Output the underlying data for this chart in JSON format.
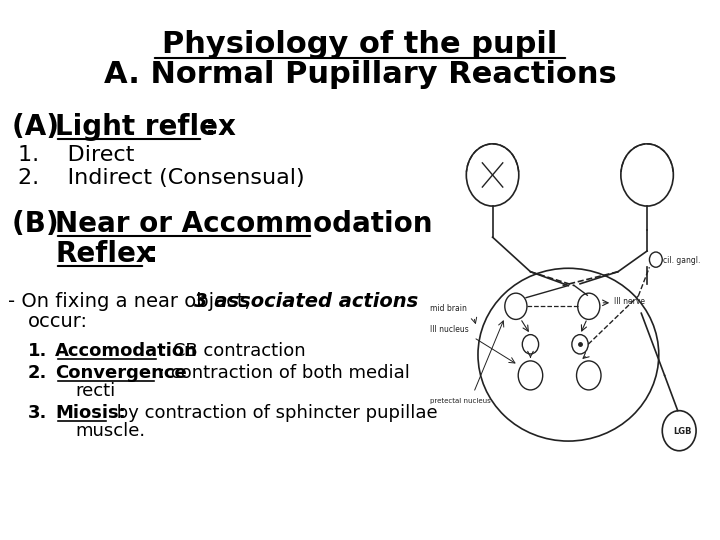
{
  "bg_color": "#ffffff",
  "title_line1": "Physiology of the pupil",
  "title_line2": "A. Normal Pupillary Reactions",
  "title_fontsize": 22,
  "title2_fontsize": 22,
  "section_a_label": "(A) ",
  "section_a_underline": "Light reflex",
  "section_a_colon": ":",
  "section_a_fontsize": 20,
  "item1": "1.    Direct",
  "item2": "2.    Indirect (Consensual)",
  "item_fontsize": 16,
  "section_b_label": "(B) ",
  "section_b_underline1": "Near or Accommodation",
  "section_b_underline2": "Reflex",
  "section_b_colon": ":",
  "section_b_fontsize": 20,
  "dash_text": "- On fixing a near object, ",
  "dash_bold_italic": "3 associated actions",
  "dash_suffix": " occur:",
  "dash_fontsize": 14,
  "sub1_bold": "Accomodation",
  "sub1_rest": ": CB contraction",
  "sub2_bold": "Convergence",
  "sub2_rest": ": contraction of both medial",
  "sub2_rest2": "recti",
  "sub3_bold": "Miosis:",
  "sub3_rest": " by contraction of sphincter pupillae",
  "sub3_rest2": "muscle.",
  "sub_fontsize": 13,
  "text_color": "#000000",
  "diagram_placeholder": true
}
